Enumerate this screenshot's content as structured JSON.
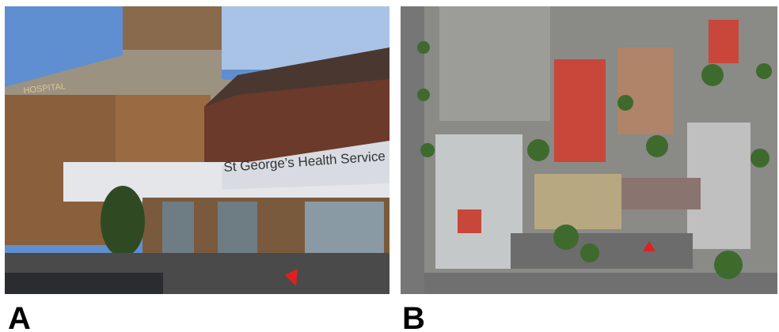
{
  "panels": [
    {
      "label": "A",
      "sign": "St George’s Health Service",
      "facade": "HOSPITAL"
    },
    {
      "label": "B"
    }
  ]
}
